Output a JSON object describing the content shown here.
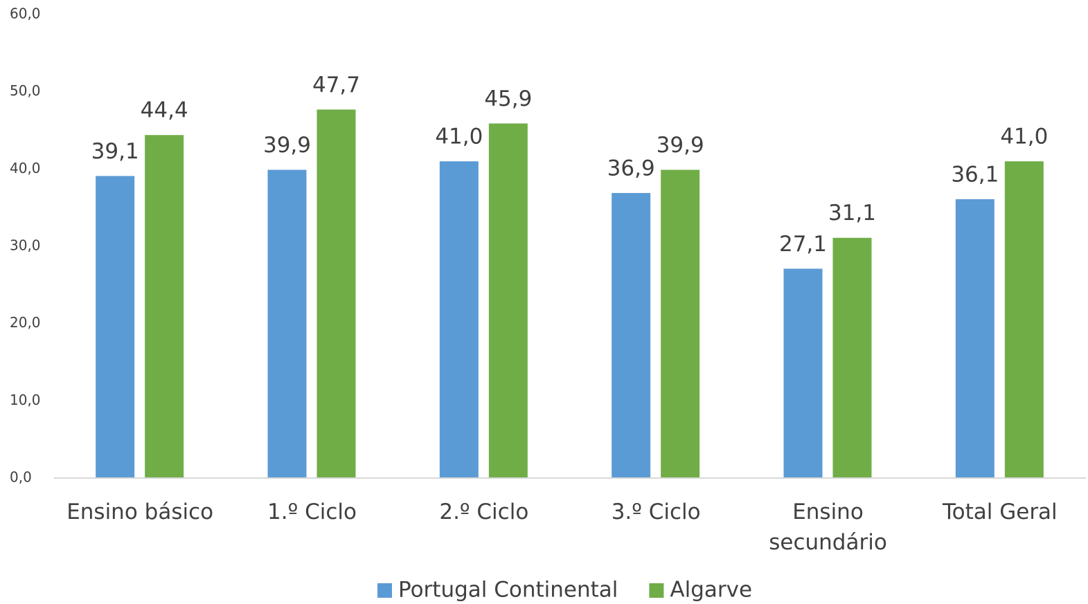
{
  "chart_data": {
    "type": "bar",
    "categories": [
      "Ensino básico",
      "1.º Ciclo",
      "2.º Ciclo",
      "3.º Ciclo",
      "Ensino secundário",
      "Total Geral"
    ],
    "series": [
      {
        "name": "Portugal Continental",
        "color": "#5b9bd5",
        "values": [
          39.1,
          39.9,
          41.0,
          36.9,
          27.1,
          36.1
        ],
        "value_labels": [
          "39,1",
          "39,9",
          "41,0",
          "36,9",
          "27,1",
          "36,1"
        ]
      },
      {
        "name": "Algarve",
        "color": "#70ad47",
        "values": [
          44.4,
          47.7,
          45.9,
          39.9,
          31.1,
          41.0
        ],
        "value_labels": [
          "44,4",
          "47,7",
          "45,9",
          "39,9",
          "31,1",
          "41,0"
        ]
      }
    ],
    "ylim": [
      0,
      60
    ],
    "yticks": [
      {
        "value": 0,
        "label": "0,0"
      },
      {
        "value": 10,
        "label": "10,0"
      },
      {
        "value": 20,
        "label": "20,0"
      },
      {
        "value": 30,
        "label": "30,0"
      },
      {
        "value": 40,
        "label": "40,0"
      },
      {
        "value": 50,
        "label": "50,0"
      },
      {
        "value": 60,
        "label": "60,0"
      }
    ],
    "grid": false,
    "legend": "bottom"
  }
}
